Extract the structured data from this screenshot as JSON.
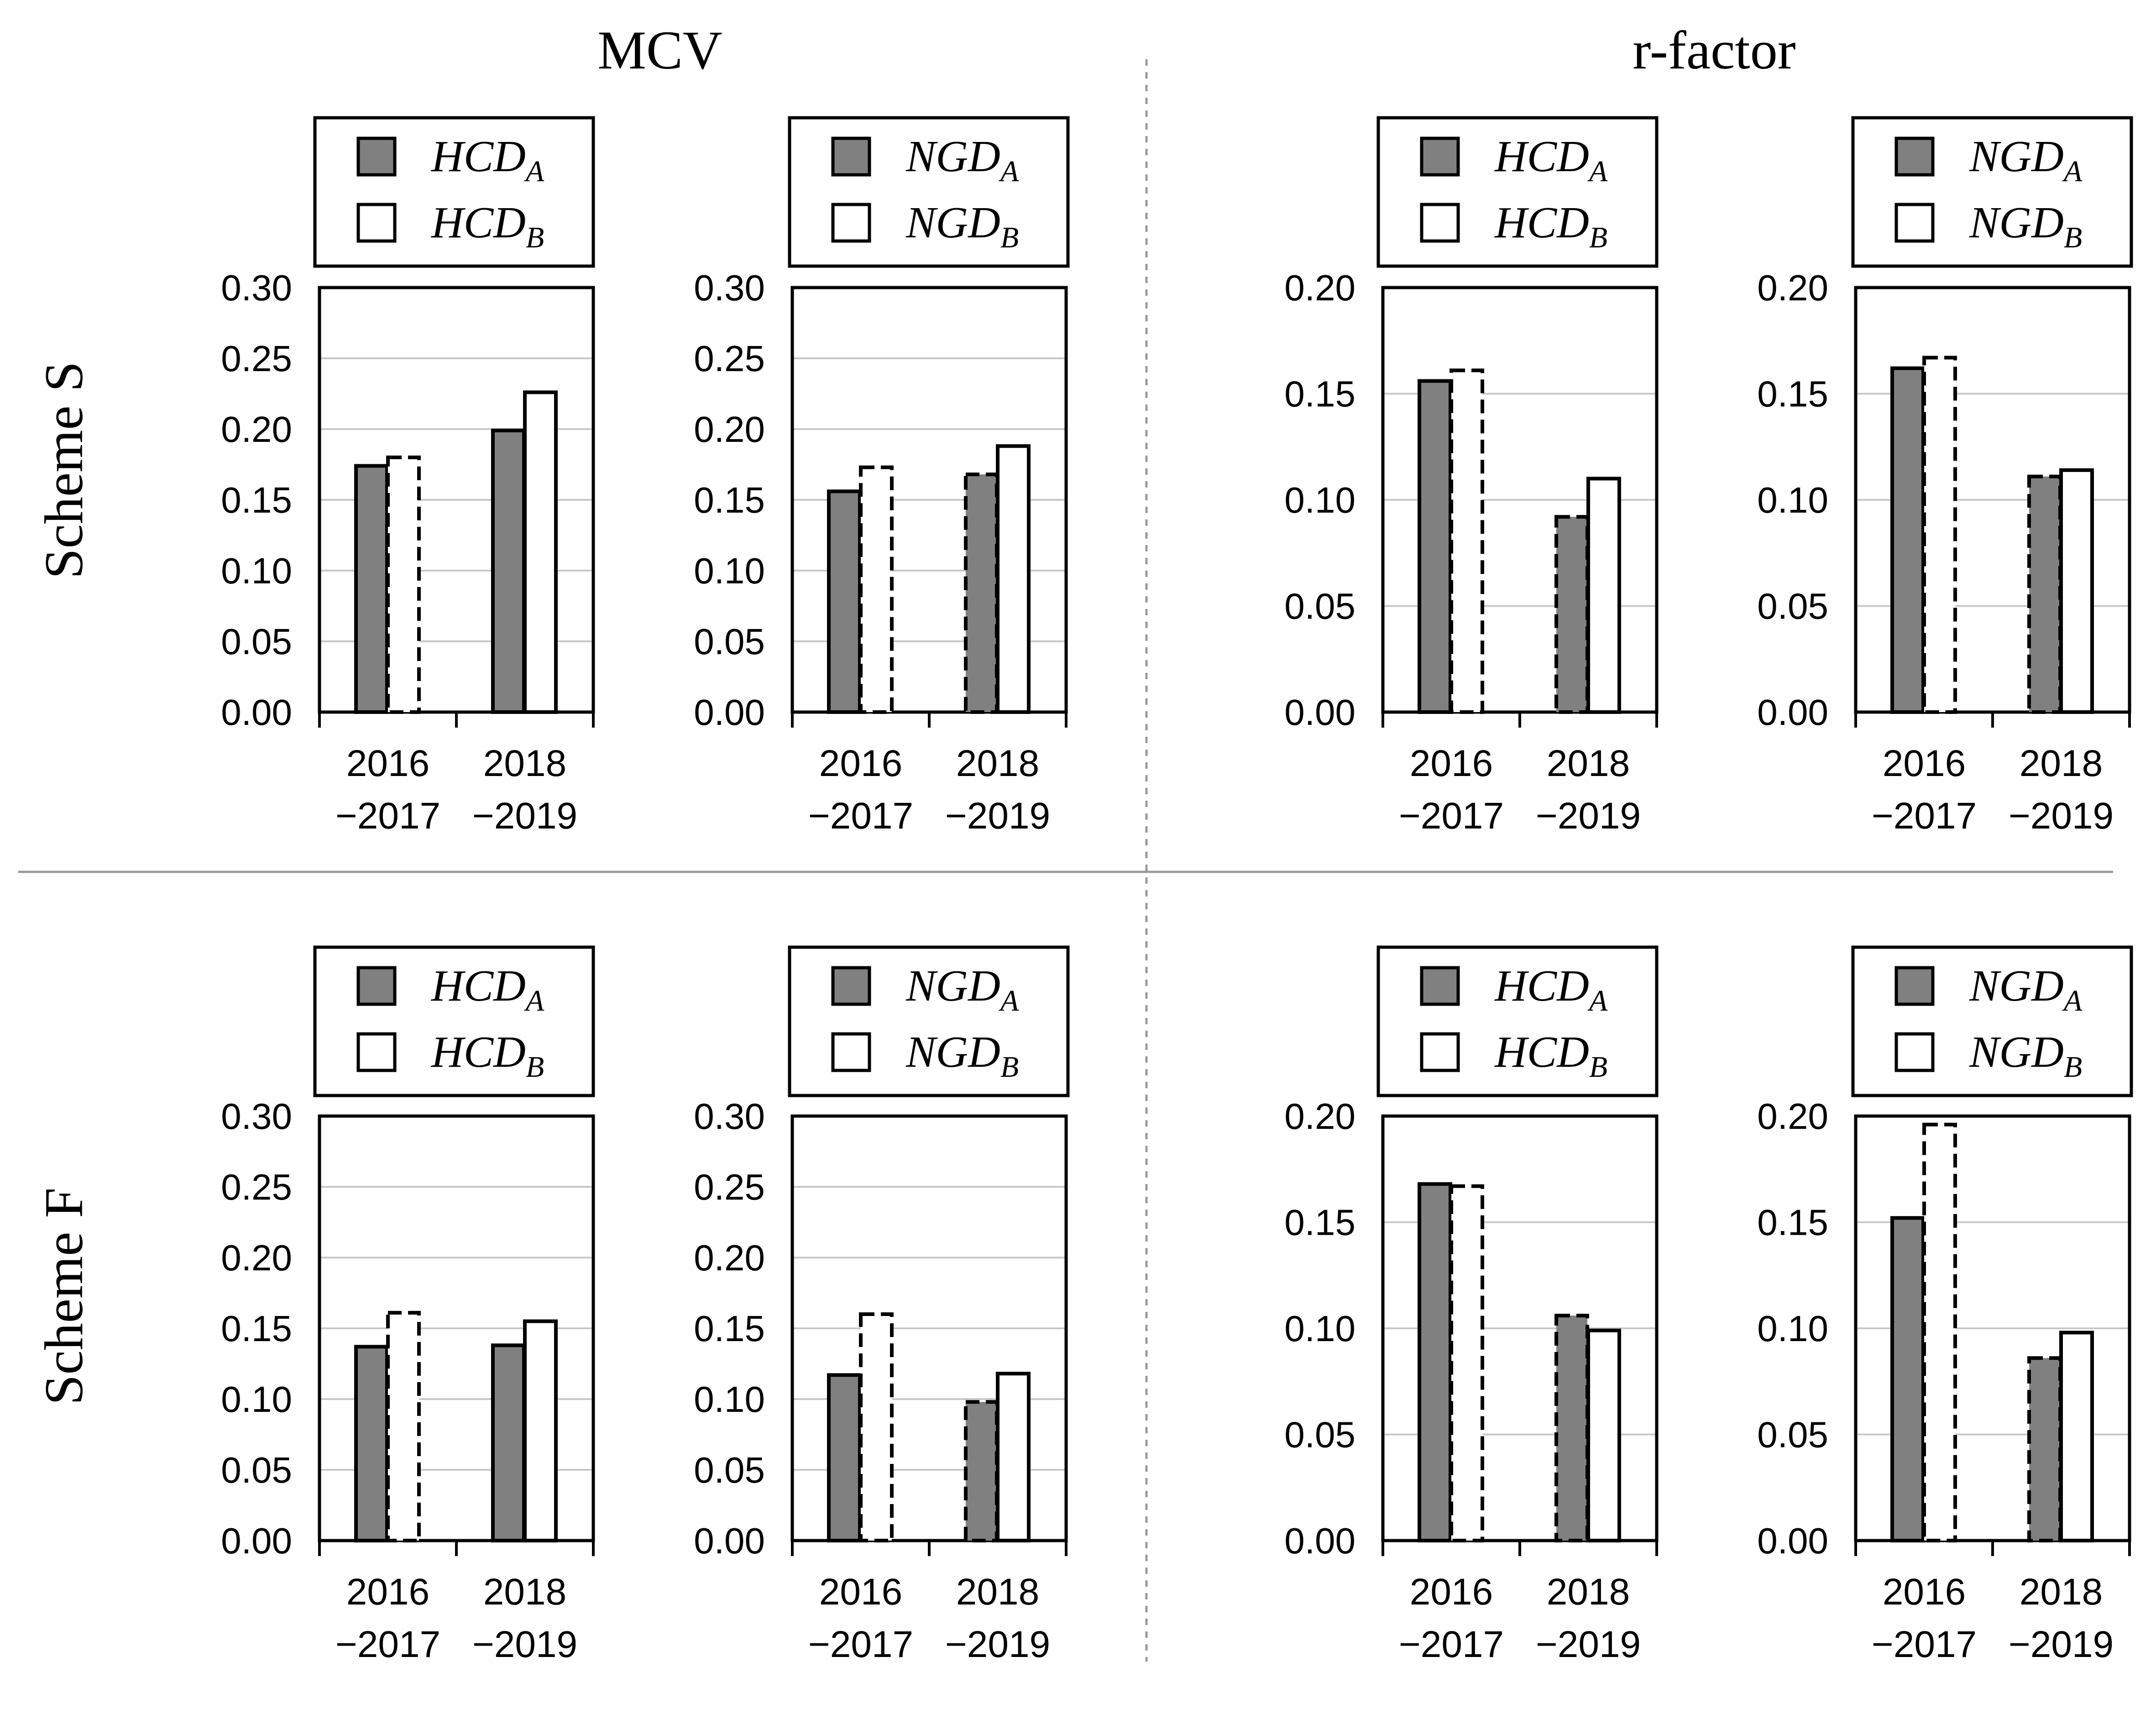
{
  "figure": {
    "column_titles": [
      "MCV",
      "r-factor"
    ],
    "row_titles": [
      "Scheme S",
      "Scheme F"
    ]
  },
  "colors": {
    "series_a_fill": "#808080",
    "series_b_fill": "#ffffff",
    "stroke": "#000000",
    "gridline": "#c8c8c8"
  },
  "chart_data": [
    {
      "id": "mcv-s-hcd",
      "type": "bar",
      "metric": "MCV",
      "scheme": "Scheme S",
      "categories": [
        [
          "2016",
          "−2017"
        ],
        [
          "2018",
          "−2019"
        ]
      ],
      "series": [
        {
          "name": "HCD",
          "sub": "A",
          "values": [
            0.174,
            0.199
          ],
          "dashed": [
            false,
            false
          ]
        },
        {
          "name": "HCD",
          "sub": "B",
          "values": [
            0.18,
            0.226
          ],
          "dashed": [
            true,
            false
          ]
        }
      ],
      "ylim": [
        0,
        0.3
      ],
      "yticks": [
        "0.00",
        "0.05",
        "0.10",
        "0.15",
        "0.20",
        "0.25",
        "0.30"
      ]
    },
    {
      "id": "mcv-s-ngd",
      "type": "bar",
      "metric": "MCV",
      "scheme": "Scheme S",
      "categories": [
        [
          "2016",
          "−2017"
        ],
        [
          "2018",
          "−2019"
        ]
      ],
      "series": [
        {
          "name": "NGD",
          "sub": "A",
          "values": [
            0.156,
            0.168
          ],
          "dashed": [
            false,
            true
          ]
        },
        {
          "name": "NGD",
          "sub": "B",
          "values": [
            0.173,
            0.188
          ],
          "dashed": [
            true,
            false
          ]
        }
      ],
      "ylim": [
        0,
        0.3
      ],
      "yticks": [
        "0.00",
        "0.05",
        "0.10",
        "0.15",
        "0.20",
        "0.25",
        "0.30"
      ]
    },
    {
      "id": "rf-s-hcd",
      "type": "bar",
      "metric": "r-factor",
      "scheme": "Scheme S",
      "categories": [
        [
          "2016",
          "−2017"
        ],
        [
          "2018",
          "−2019"
        ]
      ],
      "series": [
        {
          "name": "HCD",
          "sub": "A",
          "values": [
            0.156,
            0.092
          ],
          "dashed": [
            false,
            true
          ]
        },
        {
          "name": "HCD",
          "sub": "B",
          "values": [
            0.161,
            0.11
          ],
          "dashed": [
            true,
            false
          ]
        }
      ],
      "ylim": [
        0,
        0.2
      ],
      "yticks": [
        "0.00",
        "0.05",
        "0.10",
        "0.15",
        "0.20"
      ]
    },
    {
      "id": "rf-s-ngd",
      "type": "bar",
      "metric": "r-factor",
      "scheme": "Scheme S",
      "categories": [
        [
          "2016",
          "−2017"
        ],
        [
          "2018",
          "−2019"
        ]
      ],
      "series": [
        {
          "name": "NGD",
          "sub": "A",
          "values": [
            0.162,
            0.111
          ],
          "dashed": [
            false,
            true
          ]
        },
        {
          "name": "NGD",
          "sub": "B",
          "values": [
            0.167,
            0.114
          ],
          "dashed": [
            true,
            false
          ]
        }
      ],
      "ylim": [
        0,
        0.2
      ],
      "yticks": [
        "0.00",
        "0.05",
        "0.10",
        "0.15",
        "0.20"
      ]
    },
    {
      "id": "mcv-f-hcd",
      "type": "bar",
      "metric": "MCV",
      "scheme": "Scheme F",
      "categories": [
        [
          "2016",
          "−2017"
        ],
        [
          "2018",
          "−2019"
        ]
      ],
      "series": [
        {
          "name": "HCD",
          "sub": "A",
          "values": [
            0.137,
            0.138
          ],
          "dashed": [
            false,
            false
          ]
        },
        {
          "name": "HCD",
          "sub": "B",
          "values": [
            0.161,
            0.155
          ],
          "dashed": [
            true,
            false
          ]
        }
      ],
      "ylim": [
        0,
        0.3
      ],
      "yticks": [
        "0.00",
        "0.05",
        "0.10",
        "0.15",
        "0.20",
        "0.25",
        "0.30"
      ]
    },
    {
      "id": "mcv-f-ngd",
      "type": "bar",
      "metric": "MCV",
      "scheme": "Scheme F",
      "categories": [
        [
          "2016",
          "−2017"
        ],
        [
          "2018",
          "−2019"
        ]
      ],
      "series": [
        {
          "name": "NGD",
          "sub": "A",
          "values": [
            0.117,
            0.098
          ],
          "dashed": [
            false,
            true
          ]
        },
        {
          "name": "NGD",
          "sub": "B",
          "values": [
            0.16,
            0.118
          ],
          "dashed": [
            true,
            false
          ]
        }
      ],
      "ylim": [
        0,
        0.3
      ],
      "yticks": [
        "0.00",
        "0.05",
        "0.10",
        "0.15",
        "0.20",
        "0.25",
        "0.30"
      ]
    },
    {
      "id": "rf-f-hcd",
      "type": "bar",
      "metric": "r-factor",
      "scheme": "Scheme F",
      "categories": [
        [
          "2016",
          "−2017"
        ],
        [
          "2018",
          "−2019"
        ]
      ],
      "series": [
        {
          "name": "HCD",
          "sub": "A",
          "values": [
            0.168,
            0.106
          ],
          "dashed": [
            false,
            true
          ]
        },
        {
          "name": "HCD",
          "sub": "B",
          "values": [
            0.167,
            0.099
          ],
          "dashed": [
            true,
            false
          ]
        }
      ],
      "ylim": [
        0,
        0.2
      ],
      "yticks": [
        "0.00",
        "0.05",
        "0.10",
        "0.15",
        "0.20"
      ]
    },
    {
      "id": "rf-f-ngd",
      "type": "bar",
      "metric": "r-factor",
      "scheme": "Scheme F",
      "categories": [
        [
          "2016",
          "−2017"
        ],
        [
          "2018",
          "−2019"
        ]
      ],
      "series": [
        {
          "name": "NGD",
          "sub": "A",
          "values": [
            0.152,
            0.086
          ],
          "dashed": [
            false,
            true
          ]
        },
        {
          "name": "NGD",
          "sub": "B",
          "values": [
            0.196,
            0.098
          ],
          "dashed": [
            true,
            false
          ]
        }
      ],
      "ylim": [
        0,
        0.2
      ],
      "yticks": [
        "0.00",
        "0.05",
        "0.10",
        "0.15",
        "0.20"
      ]
    }
  ]
}
